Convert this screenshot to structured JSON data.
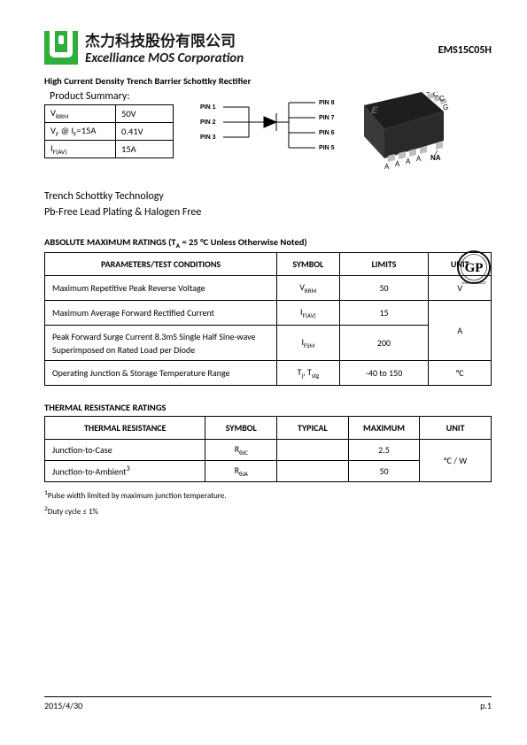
{
  "header": {
    "company_cn": "杰力科技股份有限公司",
    "company_en": "Excelliance MOS Corporation",
    "part_number": "EMS15C05H",
    "subtitle": "High Current Density Trench Barrier Schottky Rectifier",
    "logo_bg": "#2fae3a",
    "logo_inner": "#ffffff"
  },
  "summary": {
    "title": "Product Summary:",
    "rows": [
      {
        "param": "V<sub>RRM</sub>",
        "value": "50V"
      },
      {
        "param": "V<sub>F</sub> @ I<sub>F</sub>=15A",
        "value": "0.41V"
      },
      {
        "param": "I<sub>F(AV)</sub>",
        "value": "15A"
      }
    ]
  },
  "pins": {
    "left": [
      "PIN 1",
      "PIN 2",
      "PIN 3"
    ],
    "right": [
      "PIN 8",
      "PIN 7",
      "PIN 6",
      "PIN 5"
    ]
  },
  "chip": {
    "body_color": "#2a2a2a",
    "pad_color": "#bfbfbf",
    "logo_on_chip": "E",
    "corner_labels": [
      "C",
      "C",
      "C",
      "G"
    ],
    "bottom_labels": [
      "A",
      "A",
      "A",
      "A"
    ],
    "na_label": "NA"
  },
  "tech_lines": {
    "line1": "Trench Schottky Technology",
    "line2": "Pb-Free Lead Plating & Halogen Free"
  },
  "amr": {
    "title": "ABSOLUTE MAXIMUM RATINGS (T<sub>A</sub> = 25 °C Unless Otherwise Noted)",
    "headers": [
      "PARAMETERS/TEST CONDITIONS",
      "SYMBOL",
      "LIMITS",
      "UNIT"
    ],
    "rows": [
      {
        "param": "Maximum Repetitive Peak Reverse Voltage",
        "symbol": "V<sub>RRM</sub>",
        "limits": "50",
        "unit": "V"
      },
      {
        "param": "Maximum Average Forward Rectified Current",
        "symbol": "I<sub>F(AV)</sub>",
        "limits": "15",
        "unit_rowspan": true
      },
      {
        "param": "Peak Forward Surge Current 8.3mS Single Half Sine-wave Superimposed on Rated Load per Diode",
        "symbol": "I<sub>FSM</sub>",
        "limits": "200",
        "unit": "A",
        "tall": true
      },
      {
        "param": "Operating Junction & Storage Temperature Range",
        "symbol": "T<sub>j</sub>, T<sub>stg</sub>",
        "limits": "-40 to 150",
        "unit": "°C"
      }
    ]
  },
  "thermal": {
    "title": "THERMAL RESISTANCE RATINGS",
    "headers": [
      "THERMAL RESISTANCE",
      "SYMBOL",
      "TYPICAL",
      "MAXIMUM",
      "UNIT"
    ],
    "rows": [
      {
        "param": "Junction-to-Case",
        "symbol": "R<sub>θJC</sub>",
        "typical": "",
        "maximum": "2.5",
        "unit_rowspan": true
      },
      {
        "param": "Junction-to-Ambient<sup>3</sup>",
        "symbol": "R<sub>θJA</sub>",
        "typical": "",
        "maximum": "50",
        "unit": "°C / W"
      }
    ]
  },
  "footnotes": {
    "f1": "<sup>1</sup>Pulse width limited by maximum junction temperature.",
    "f2": "<sup>2</sup>Duty cycle ≤ 1%"
  },
  "gp_badge": {
    "ring_text": "GP",
    "sub": "GREEN PRODUCT",
    "ring_color": "#000000"
  },
  "footer": {
    "date": "2015/4/30",
    "page": "p.1"
  }
}
